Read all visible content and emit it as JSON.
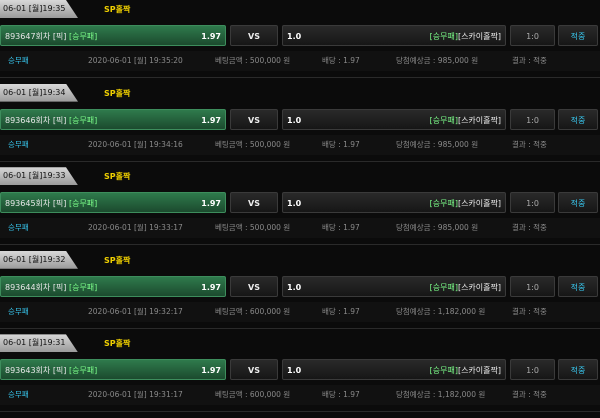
{
  "bets": [
    {
      "tab": "06-01 [월]19:35",
      "game": "SP홀짝",
      "round": "893647회차",
      "pick": "[픽]",
      "pick_market": "[승무패]",
      "odds": "1.97",
      "vs": "VS",
      "handicap": "1.0",
      "market": "[승무패]",
      "option": "[스카이홀짝]",
      "score": "1:0",
      "result": "적중",
      "category": "승무패",
      "datetime": "2020-06-01 [월] 19:35:20",
      "bet_amount": "베팅금액 : 500,000 원",
      "dividend": "배당 : 1.97",
      "expected": "당첨예상금 : 985,000 원",
      "outcome": "결과 : 적중"
    },
    {
      "tab": "06-01 [월]19:34",
      "game": "SP홀짝",
      "round": "893646회차",
      "pick": "[픽]",
      "pick_market": "[승무패]",
      "odds": "1.97",
      "vs": "VS",
      "handicap": "1.0",
      "market": "[승무패]",
      "option": "[스카이홀짝]",
      "score": "1:0",
      "result": "적중",
      "category": "승무패",
      "datetime": "2020-06-01 [월] 19:34:16",
      "bet_amount": "베팅금액 : 500,000 원",
      "dividend": "배당 : 1.97",
      "expected": "당첨예상금 : 985,000 원",
      "outcome": "결과 : 적중"
    },
    {
      "tab": "06-01 [월]19:33",
      "game": "SP홀짝",
      "round": "893645회차",
      "pick": "[픽]",
      "pick_market": "[승무패]",
      "odds": "1.97",
      "vs": "VS",
      "handicap": "1.0",
      "market": "[승무패]",
      "option": "[스카이홀짝]",
      "score": "1:0",
      "result": "적중",
      "category": "승무패",
      "datetime": "2020-06-01 [월] 19:33:17",
      "bet_amount": "베팅금액 : 500,000 원",
      "dividend": "배당 : 1.97",
      "expected": "당첨예상금 : 985,000 원",
      "outcome": "결과 : 적중"
    },
    {
      "tab": "06-01 [월]19:32",
      "game": "SP홀짝",
      "round": "893644회차",
      "pick": "[픽]",
      "pick_market": "[승무패]",
      "odds": "1.97",
      "vs": "VS",
      "handicap": "1.0",
      "market": "[승무패]",
      "option": "[스카이홀짝]",
      "score": "1:0",
      "result": "적중",
      "category": "승무패",
      "datetime": "2020-06-01 [월] 19:32:17",
      "bet_amount": "베팅금액 : 600,000 원",
      "dividend": "배당 : 1.97",
      "expected": "당첨예상금 : 1,182,000 원",
      "outcome": "결과 : 적중"
    },
    {
      "tab": "06-01 [월]19:31",
      "game": "SP홀짝",
      "round": "893643회차",
      "pick": "[픽]",
      "pick_market": "[승무패]",
      "odds": "1.97",
      "vs": "VS",
      "handicap": "1.0",
      "market": "[승무패]",
      "option": "[스카이홀짝]",
      "score": "1:0",
      "result": "적중",
      "category": "승무패",
      "datetime": "2020-06-01 [월] 19:31:17",
      "bet_amount": "베팅금액 : 600,000 원",
      "dividend": "배당 : 1.97",
      "expected": "당첨예상금 : 1,182,000 원",
      "outcome": "결과 : 적중"
    }
  ]
}
